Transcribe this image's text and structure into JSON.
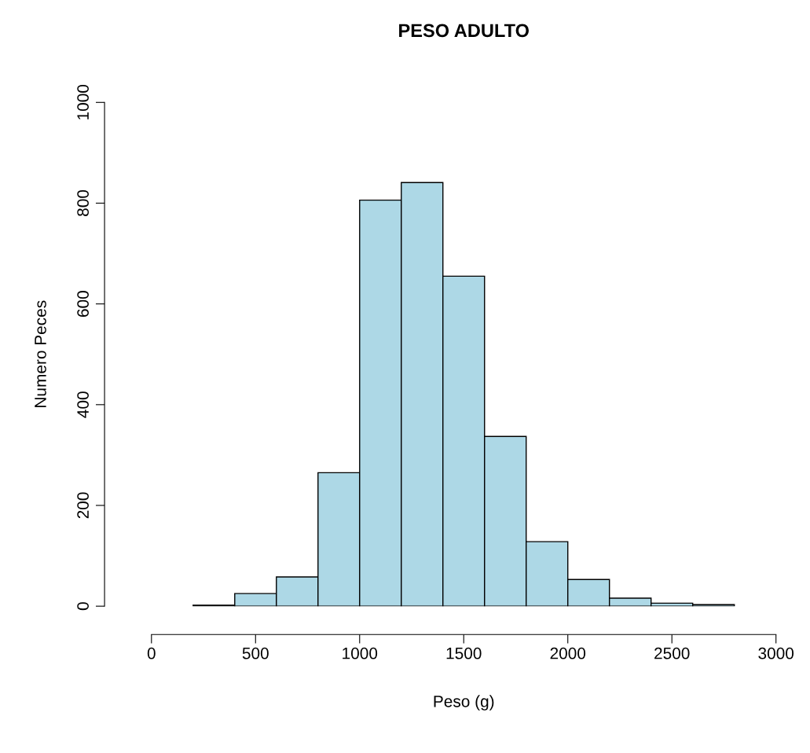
{
  "chart_data": {
    "type": "histogram",
    "title": "PESO ADULTO",
    "xlabel": "Peso (g)",
    "ylabel": "Numero Peces",
    "bins": [
      200,
      400,
      600,
      800,
      1000,
      1200,
      1400,
      1600,
      1800,
      2000,
      2200,
      2400,
      2600,
      2800
    ],
    "values": [
      2,
      25,
      58,
      265,
      806,
      841,
      655,
      337,
      128,
      53,
      16,
      6,
      3
    ],
    "color": "#add8e6",
    "xlim": [
      0,
      3000
    ],
    "xticks": [
      0,
      500,
      1000,
      1500,
      2000,
      2500,
      3000
    ],
    "ylim": [
      0,
      1000
    ],
    "yticks": [
      0,
      200,
      400,
      600,
      800,
      1000
    ],
    "grid": false
  }
}
